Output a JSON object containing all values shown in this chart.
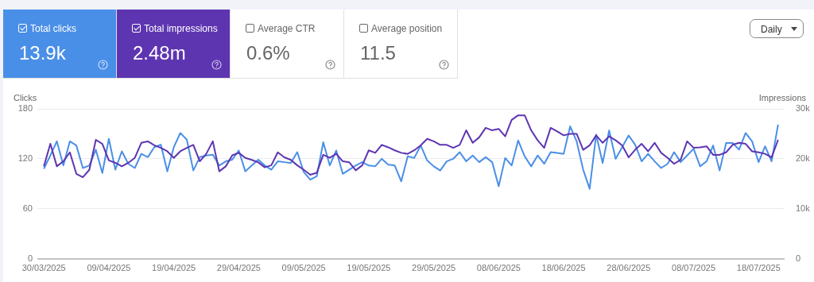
{
  "chart_data": {
    "type": "line",
    "ylabel": "Clicks",
    "y2label": "Impressions",
    "annotations": [
      "13.9k",
      "2.48m",
      "Average CTR",
      "0.6%",
      "Average position",
      "11.5",
      "Daily"
    ],
    "x": [
      "2025-03-30",
      "2025-03-31",
      "2025-04-01",
      "2025-04-02",
      "2025-04-03",
      "2025-04-04",
      "2025-04-05",
      "2025-04-06",
      "2025-04-07",
      "2025-04-08",
      "2025-04-09",
      "2025-04-10",
      "2025-04-11",
      "2025-04-12",
      "2025-04-13",
      "2025-04-14",
      "2025-04-15",
      "2025-04-16",
      "2025-04-17",
      "2025-04-18",
      "2025-04-19",
      "2025-04-20",
      "2025-04-21",
      "2025-04-22",
      "2025-04-23",
      "2025-04-24",
      "2025-04-25",
      "2025-04-26",
      "2025-04-27",
      "2025-04-28",
      "2025-04-29",
      "2025-04-30",
      "2025-05-01",
      "2025-05-02",
      "2025-05-03",
      "2025-05-04",
      "2025-05-05",
      "2025-05-06",
      "2025-05-07",
      "2025-05-08",
      "2025-05-09",
      "2025-05-10",
      "2025-05-11",
      "2025-05-12",
      "2025-05-13",
      "2025-05-14",
      "2025-05-15",
      "2025-05-16",
      "2025-05-17",
      "2025-05-18",
      "2025-05-19",
      "2025-05-20",
      "2025-05-21",
      "2025-05-22",
      "2025-05-23",
      "2025-05-24",
      "2025-05-25",
      "2025-05-26",
      "2025-05-27",
      "2025-05-28",
      "2025-05-29",
      "2025-05-30",
      "2025-05-31",
      "2025-06-01",
      "2025-06-02",
      "2025-06-03",
      "2025-06-04",
      "2025-06-05",
      "2025-06-06",
      "2025-06-07",
      "2025-06-08",
      "2025-06-09",
      "2025-06-10",
      "2025-06-11",
      "2025-06-12",
      "2025-06-13",
      "2025-06-14",
      "2025-06-15",
      "2025-06-16",
      "2025-06-17",
      "2025-06-18",
      "2025-06-19",
      "2025-06-20",
      "2025-06-21",
      "2025-06-22",
      "2025-06-23",
      "2025-06-24",
      "2025-06-25",
      "2025-06-26",
      "2025-06-27",
      "2025-06-28",
      "2025-06-29",
      "2025-06-30",
      "2025-07-01",
      "2025-07-02",
      "2025-07-03",
      "2025-07-04",
      "2025-07-05",
      "2025-07-06",
      "2025-07-07",
      "2025-07-08",
      "2025-07-09",
      "2025-07-10",
      "2025-07-11",
      "2025-07-12",
      "2025-07-13",
      "2025-07-14",
      "2025-07-15",
      "2025-07-16",
      "2025-07-17",
      "2025-07-18",
      "2025-07-19",
      "2025-07-20",
      "2025-07-21"
    ],
    "series": [
      {
        "name": "Total clicks",
        "color": "#4a8fe7",
        "values": [
          108,
          124,
          141,
          112,
          141,
          136,
          109,
          112,
          131,
          103,
          144,
          107,
          129,
          114,
          109,
          126,
          122,
          134,
          137,
          105,
          134,
          151,
          143,
          106,
          122,
          124,
          125,
          112,
          117,
          119,
          130,
          105,
          112,
          119,
          112,
          107,
          117,
          116,
          115,
          128,
          104,
          95,
          99,
          140,
          112,
          130,
          102,
          107,
          112,
          116,
          112,
          111,
          120,
          113,
          112,
          93,
          123,
          121,
          136,
          118,
          111,
          106,
          117,
          120,
          128,
          117,
          124,
          116,
          122,
          116,
          87,
          121,
          112,
          142,
          123,
          111,
          124,
          114,
          128,
          127,
          126,
          159,
          141,
          107,
          84,
          149,
          115,
          154,
          120,
          134,
          148,
          137,
          117,
          126,
          117,
          109,
          114,
          128,
          116,
          124,
          132,
          111,
          117,
          136,
          106,
          139,
          139,
          131,
          151,
          141,
          116,
          135,
          117,
          161
        ]
      },
      {
        "name": "Total impressions",
        "color": "#5e35b1",
        "axis": "y2",
        "values": [
          18500,
          23000,
          18500,
          19500,
          21300,
          17000,
          16300,
          17800,
          23800,
          23000,
          19700,
          19200,
          18500,
          19200,
          20200,
          23200,
          23500,
          22700,
          22200,
          21500,
          20200,
          21500,
          22200,
          22800,
          19500,
          21000,
          23500,
          17500,
          18500,
          20700,
          21200,
          20200,
          19800,
          19300,
          18300,
          18700,
          21300,
          20300,
          19800,
          18700,
          17800,
          16800,
          17200,
          20800,
          20200,
          21000,
          19500,
          19300,
          17700,
          18700,
          21700,
          21200,
          22800,
          22300,
          21700,
          21200,
          21000,
          21700,
          22700,
          24000,
          23500,
          22800,
          22800,
          22200,
          22800,
          25700,
          23200,
          24300,
          26200,
          25700,
          26000,
          24500,
          27800,
          28700,
          28700,
          25700,
          23700,
          22200,
          26200,
          25500,
          24700,
          25000,
          25000,
          21800,
          22700,
          24700,
          23200,
          24500,
          23700,
          22700,
          20300,
          21800,
          23000,
          21500,
          23200,
          21200,
          20200,
          19000,
          19800,
          23500,
          22200,
          22300,
          22500,
          20800,
          20800,
          21300,
          22800,
          23200,
          23000,
          21500,
          21300,
          21000,
          20300,
          23800
        ]
      }
    ],
    "xlim": [
      "2025-03-29",
      "2025-07-22"
    ],
    "xticks": [
      {
        "value": "2025-03-30",
        "label": "30/03/2025"
      },
      {
        "value": "2025-04-09",
        "label": "09/04/2025"
      },
      {
        "value": "2025-04-19",
        "label": "19/04/2025"
      },
      {
        "value": "2025-04-29",
        "label": "29/04/2025"
      },
      {
        "value": "2025-05-09",
        "label": "09/05/2025"
      },
      {
        "value": "2025-05-19",
        "label": "19/05/2025"
      },
      {
        "value": "2025-05-29",
        "label": "29/05/2025"
      },
      {
        "value": "2025-06-08",
        "label": "08/06/2025"
      },
      {
        "value": "2025-06-18",
        "label": "18/06/2025"
      },
      {
        "value": "2025-06-28",
        "label": "28/06/2025"
      },
      {
        "value": "2025-07-08",
        "label": "08/07/2025"
      },
      {
        "value": "2025-07-18",
        "label": "18/07/2025"
      }
    ],
    "ylim": [
      0,
      180
    ],
    "yticks": [
      0,
      60,
      120,
      180
    ],
    "y2lim": [
      0,
      30000
    ],
    "y2ticks": [
      0,
      {
        "value": 10000,
        "label": "10k"
      },
      {
        "value": 20000,
        "label": "20k"
      },
      {
        "value": 30000,
        "label": "30k"
      }
    ],
    "grid": "y",
    "legend": "top left",
    "marker": "none",
    "line_style": "solid"
  }
}
